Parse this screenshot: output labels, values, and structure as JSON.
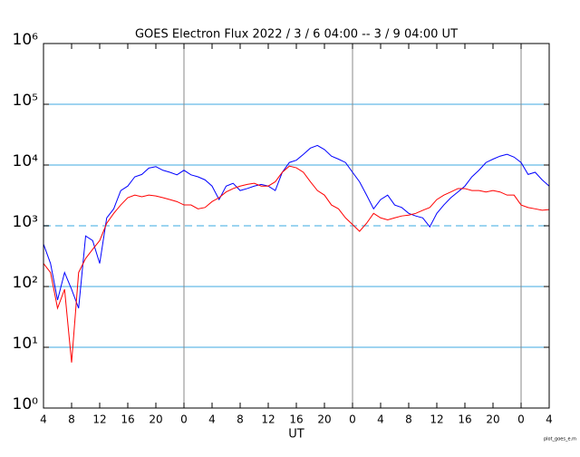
{
  "chart_data": {
    "type": "line",
    "title": "GOES Electron Flux  2022 / 3 / 6  04:00 -- 3 / 9  04:00  UT",
    "xlabel": "UT",
    "footnote": "plot_goes_e.m",
    "yscale": "log",
    "ylim": [
      1,
      1000000
    ],
    "yticks": [
      {
        "value": 1,
        "label": "10⁰"
      },
      {
        "value": 10,
        "label": "10¹"
      },
      {
        "value": 100,
        "label": "10²"
      },
      {
        "value": 1000,
        "label": "10³"
      },
      {
        "value": 10000,
        "label": "10⁴"
      },
      {
        "value": 100000,
        "label": "10⁵"
      },
      {
        "value": 1000000,
        "label": "10⁶"
      }
    ],
    "grid_y": [
      10,
      100,
      10000,
      100000
    ],
    "dashed_line": 1000,
    "day_lines": [
      20,
      44,
      68
    ],
    "xlim": [
      0,
      72
    ],
    "xticks": [
      {
        "value": 0,
        "label": "4"
      },
      {
        "value": 4,
        "label": "8"
      },
      {
        "value": 8,
        "label": "12"
      },
      {
        "value": 12,
        "label": "16"
      },
      {
        "value": 16,
        "label": "20"
      },
      {
        "value": 20,
        "label": "0"
      },
      {
        "value": 24,
        "label": "4"
      },
      {
        "value": 28,
        "label": "8"
      },
      {
        "value": 32,
        "label": "12"
      },
      {
        "value": 36,
        "label": "16"
      },
      {
        "value": 40,
        "label": "20"
      },
      {
        "value": 44,
        "label": "0"
      },
      {
        "value": 48,
        "label": "4"
      },
      {
        "value": 52,
        "label": "8"
      },
      {
        "value": 56,
        "label": "12"
      },
      {
        "value": 60,
        "label": "16"
      },
      {
        "value": 64,
        "label": "20"
      },
      {
        "value": 68,
        "label": "0"
      },
      {
        "value": 72,
        "label": "4"
      }
    ],
    "x": [
      0,
      1,
      2,
      3,
      4,
      5,
      6,
      7,
      8,
      9,
      10,
      11,
      12,
      13,
      14,
      15,
      16,
      17,
      18,
      19,
      20,
      21,
      22,
      23,
      24,
      25,
      26,
      27,
      28,
      29,
      30,
      31,
      32,
      33,
      34,
      35,
      36,
      37,
      38,
      39,
      40,
      41,
      42,
      43,
      44,
      45,
      46,
      47,
      48,
      49,
      50,
      51,
      52,
      53,
      54,
      55,
      56,
      57,
      58,
      59,
      60,
      61,
      62,
      63,
      64,
      65,
      66,
      67,
      68,
      69,
      70,
      71,
      72
    ],
    "series": [
      {
        "color": "#0000ff",
        "values": [
          500,
          240,
          60,
          170,
          90,
          44,
          680,
          570,
          240,
          1350,
          1900,
          3800,
          4500,
          6400,
          7000,
          8900,
          9400,
          8200,
          7600,
          6900,
          8200,
          6900,
          6400,
          5700,
          4500,
          2700,
          4500,
          5000,
          3800,
          4100,
          4500,
          4800,
          4500,
          3800,
          7600,
          11000,
          12000,
          15000,
          19000,
          21000,
          18000,
          14000,
          12500,
          11000,
          7600,
          5300,
          3200,
          1900,
          2700,
          3200,
          2200,
          2000,
          1600,
          1450,
          1350,
          960,
          1600,
          2200,
          2900,
          3600,
          4500,
          6400,
          8200,
          11000,
          12500,
          14000,
          15000,
          13500,
          11000,
          7000,
          7600,
          5700,
          4500
        ]
      },
      {
        "color": "#ff0000",
        "values": [
          240,
          170,
          44,
          90,
          5.6,
          170,
          290,
          410,
          570,
          1100,
          1600,
          2200,
          2900,
          3200,
          3000,
          3200,
          3100,
          2900,
          2700,
          2500,
          2200,
          2200,
          1900,
          2000,
          2500,
          2900,
          3600,
          4100,
          4500,
          4800,
          5000,
          4500,
          4500,
          5300,
          7600,
          9600,
          9000,
          7600,
          5300,
          3800,
          3200,
          2200,
          1900,
          1350,
          1050,
          810,
          1100,
          1600,
          1350,
          1250,
          1350,
          1450,
          1500,
          1600,
          1800,
          2000,
          2700,
          3200,
          3600,
          4100,
          4100,
          3800,
          3800,
          3600,
          3800,
          3600,
          3200,
          3200,
          2200,
          2000,
          1900,
          1800,
          1850
        ]
      }
    ]
  }
}
